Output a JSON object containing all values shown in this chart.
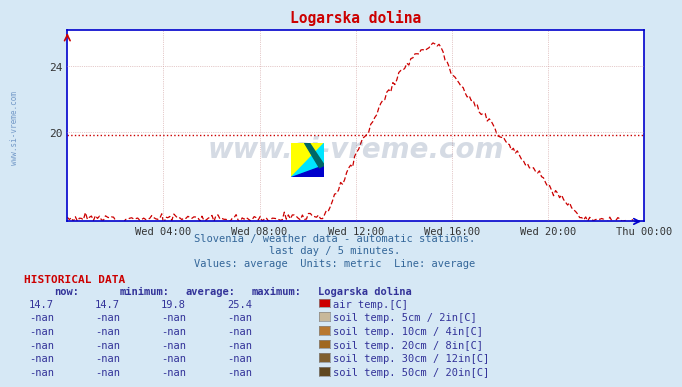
{
  "title": "Logarska dolina",
  "bg_color": "#d6e8f5",
  "plot_bg_color": "#ffffff",
  "line_color": "#cc0000",
  "avg_line_color": "#cc0000",
  "avg_value": 19.8,
  "y_min": 14.5,
  "y_max": 26.2,
  "yticks": [
    20,
    24
  ],
  "x_tick_labels": [
    "Wed 04:00",
    "Wed 08:00",
    "Wed 12:00",
    "Wed 16:00",
    "Wed 20:00",
    "Thu 00:00"
  ],
  "x_tick_positions": [
    4,
    8,
    12,
    16,
    20,
    24
  ],
  "subtitle1": "Slovenia / weather data - automatic stations.",
  "subtitle2": "last day / 5 minutes.",
  "subtitle3": "Values: average  Units: metric  Line: average",
  "hist_title": "HISTORICAL DATA",
  "col_headers": [
    "now:",
    "minimum:",
    "average:",
    "maximum:",
    "Logarska dolina"
  ],
  "rows": [
    {
      "now": "14.7",
      "min": "14.7",
      "avg": "19.8",
      "max": "25.4",
      "color": "#cc0000",
      "label": "air temp.[C]"
    },
    {
      "now": "-nan",
      "min": "-nan",
      "avg": "-nan",
      "max": "-nan",
      "color": "#c8b89a",
      "label": "soil temp. 5cm / 2in[C]"
    },
    {
      "now": "-nan",
      "min": "-nan",
      "avg": "-nan",
      "max": "-nan",
      "color": "#b87830",
      "label": "soil temp. 10cm / 4in[C]"
    },
    {
      "now": "-nan",
      "min": "-nan",
      "avg": "-nan",
      "max": "-nan",
      "color": "#a06820",
      "label": "soil temp. 20cm / 8in[C]"
    },
    {
      "now": "-nan",
      "min": "-nan",
      "avg": "-nan",
      "max": "-nan",
      "color": "#806030",
      "label": "soil temp. 30cm / 12in[C]"
    },
    {
      "now": "-nan",
      "min": "-nan",
      "avg": "-nan",
      "max": "-nan",
      "color": "#604820",
      "label": "soil temp. 50cm / 20in[C]"
    }
  ],
  "watermark_text": "www.si-vreme.com",
  "watermark_color": "#1a3a6e",
  "watermark_alpha": 0.18,
  "sidebar_text": "www.si-vreme.com",
  "sidebar_color": "#3366aa",
  "grid_color": "#cc9999",
  "spine_color": "#0000cc"
}
